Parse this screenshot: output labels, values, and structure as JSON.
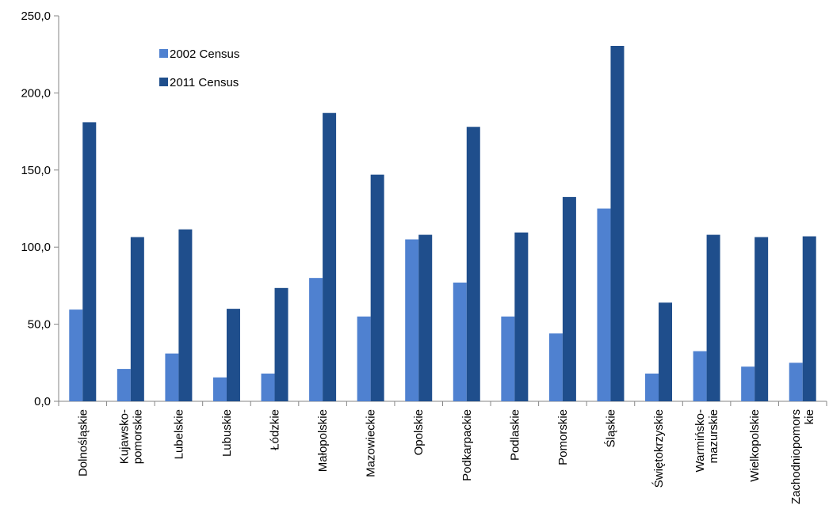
{
  "chart_data": {
    "type": "bar",
    "title": "",
    "xlabel": "",
    "ylabel": "",
    "ylim": [
      0,
      250
    ],
    "yticks": [
      "0,0",
      "50,0",
      "100,0",
      "150,0",
      "200,0",
      "250,0"
    ],
    "grid": false,
    "legend_position": "top-left",
    "categories": [
      [
        "Dolnośląskie"
      ],
      [
        "Kujawsko-",
        "pomorskie"
      ],
      [
        "Lubelskie"
      ],
      [
        "Lubuskie"
      ],
      [
        "Łódzkie"
      ],
      [
        "Małopolskie"
      ],
      [
        "Mazowieckie"
      ],
      [
        "Opolskie"
      ],
      [
        "Podkarpackie"
      ],
      [
        "Podlaskie"
      ],
      [
        "Pomorskie"
      ],
      [
        "Śląskie"
      ],
      [
        "Świętokrzyskie"
      ],
      [
        "Warmińsko-",
        "mazurskie"
      ],
      [
        "Wielkopolskie"
      ],
      [
        "Zachodniopomors",
        "kie"
      ]
    ],
    "series": [
      {
        "name": "2002 Census",
        "color": "#4f81d0",
        "values": [
          59.5,
          21,
          31,
          15.5,
          18,
          80,
          55,
          105,
          77,
          55,
          44,
          125,
          18,
          32.5,
          22.5,
          25
        ]
      },
      {
        "name": "2011 Census",
        "color": "#1f4e8c",
        "values": [
          181,
          106.5,
          111.5,
          60,
          73.5,
          187,
          147,
          108,
          178,
          109.5,
          132.5,
          230.5,
          64,
          108,
          106.5,
          107
        ]
      }
    ]
  }
}
